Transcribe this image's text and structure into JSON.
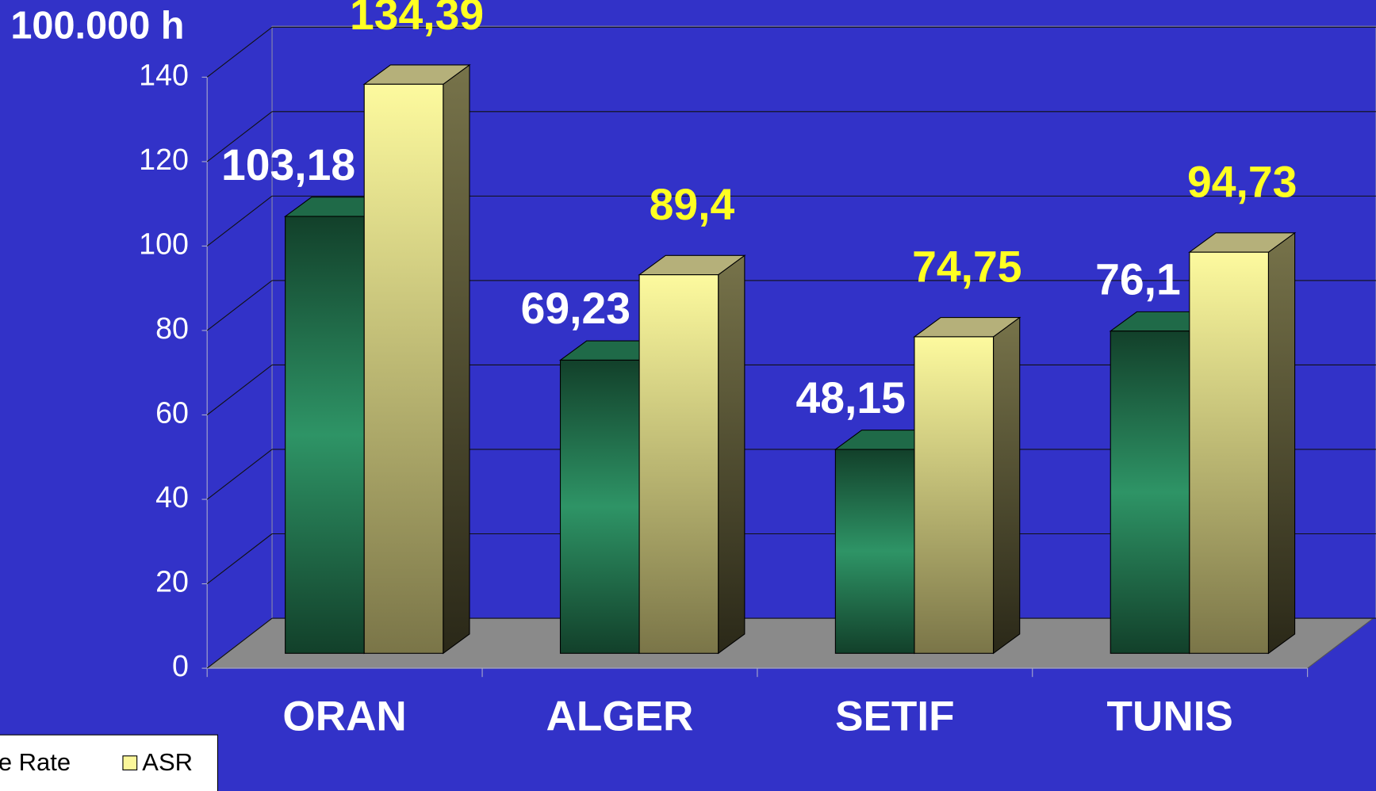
{
  "chart_data": {
    "type": "bar3d",
    "title": "100.000 h",
    "categories": [
      "ORAN",
      "ALGER",
      "SETIF",
      "TUNIS"
    ],
    "series": [
      {
        "name": "e Rate",
        "color": "#2e9466",
        "values": [
          103.18,
          69.23,
          48.15,
          76.1
        ],
        "value_labels": [
          "103,18",
          "69,23",
          "48,15",
          "76,1"
        ]
      },
      {
        "name": "ASR",
        "color": "#fbf79a",
        "values": [
          134.39,
          89.4,
          74.75,
          94.73
        ],
        "value_labels": [
          "134,39",
          "89,4",
          "74,75",
          "94,73"
        ]
      }
    ],
    "ylim": [
      0,
      140
    ],
    "yticks": [
      0,
      20,
      40,
      60,
      80,
      100,
      120,
      140
    ],
    "grid": true,
    "legend": "bottom-left"
  }
}
